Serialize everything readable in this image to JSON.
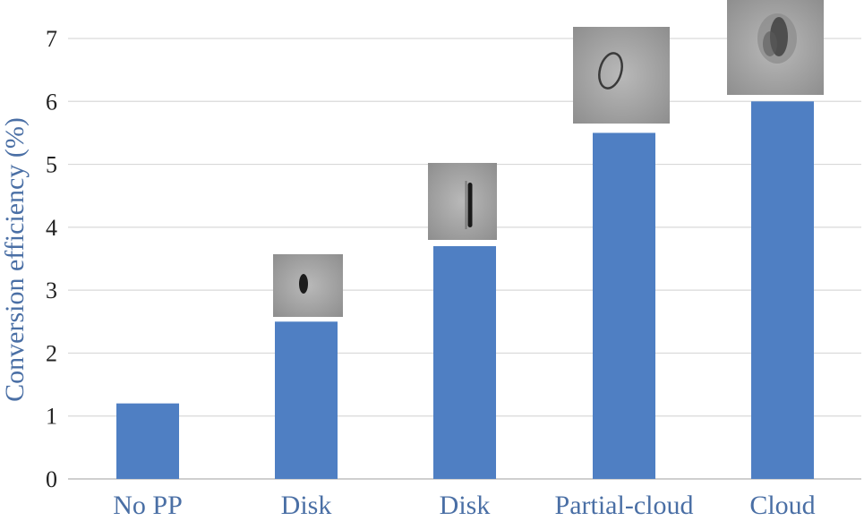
{
  "chart_data": {
    "type": "bar",
    "categories": [
      "No PP",
      "Disk",
      "Disk",
      "Partial-cloud",
      "Cloud"
    ],
    "values": [
      1.2,
      2.5,
      3.7,
      5.5,
      6.0
    ],
    "title": "",
    "xlabel": "",
    "ylabel": "Conversion efficiency (%)",
    "ylim": [
      0,
      7
    ],
    "yticks": [
      0,
      1,
      2,
      3,
      4,
      5,
      6,
      7
    ],
    "grid": true,
    "legend": "none",
    "bar_color": "#4f7fc3",
    "label_color": "#4a6fa5",
    "inset_images": [
      "small-disk-micrograph",
      "elongated-disk-micrograph",
      "ring-micrograph",
      "cloud-micrograph"
    ]
  }
}
